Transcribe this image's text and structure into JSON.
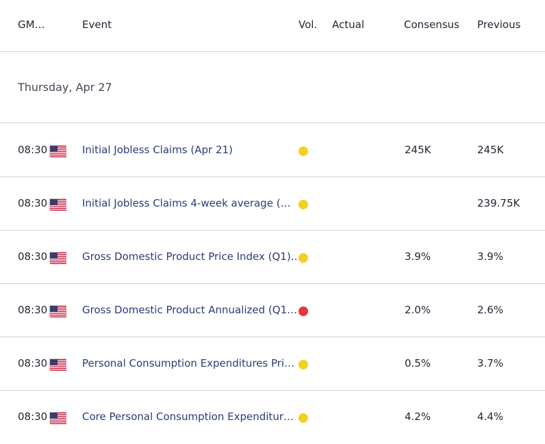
{
  "header": {
    "time_col": "GM…",
    "event_col": "Event",
    "vol_col": "Vol.",
    "actual_col": "Actual",
    "consensus_col": "Consensus",
    "previous_col": "Previous"
  },
  "date_group": {
    "label": "Thursday, Apr 27"
  },
  "colors": {
    "vol_medium": "#f5d01f",
    "vol_high": "#e5383b",
    "event_link": "#2b3a78"
  },
  "events": [
    {
      "time": "08:30",
      "country": "us-flag-icon",
      "event": "Initial Jobless Claims (Apr 21)",
      "volatility": "medium",
      "actual": "",
      "consensus": "245K",
      "previous": "245K"
    },
    {
      "time": "08:30",
      "country": "us-flag-icon",
      "event": "Initial Jobless Claims 4-week average (…",
      "volatility": "medium",
      "actual": "",
      "consensus": "",
      "previous": "239.75K"
    },
    {
      "time": "08:30",
      "country": "us-flag-icon",
      "event": "Gross Domestic Product Price Index (Q1)…",
      "volatility": "medium",
      "actual": "",
      "consensus": "3.9%",
      "previous": "3.9%"
    },
    {
      "time": "08:30",
      "country": "us-flag-icon",
      "event": "Gross Domestic Product Annualized (Q1…",
      "volatility": "high",
      "actual": "",
      "consensus": "2.0%",
      "previous": "2.6%"
    },
    {
      "time": "08:30",
      "country": "us-flag-icon",
      "event": "Personal Consumption Expenditures Pri…",
      "volatility": "medium",
      "actual": "",
      "consensus": "0.5%",
      "previous": "3.7%"
    },
    {
      "time": "08:30",
      "country": "us-flag-icon",
      "event": "Core Personal Consumption Expenditur…",
      "volatility": "medium",
      "actual": "",
      "consensus": "4.2%",
      "previous": "4.4%"
    }
  ]
}
